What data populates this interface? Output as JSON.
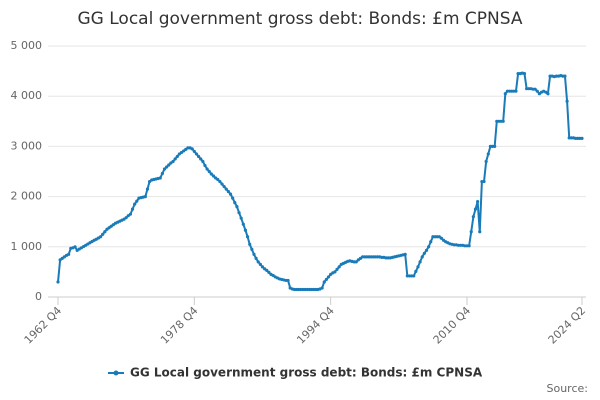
{
  "chart_data": {
    "type": "line",
    "title": "GG Local government gross debt: Bonds: £m CPNSA",
    "source": "Source:",
    "categories": [
      "1962 Q4",
      null,
      null,
      null,
      null,
      null,
      null,
      null,
      null,
      null,
      null,
      null,
      null,
      null,
      null,
      null,
      null,
      null,
      null,
      null,
      null,
      null,
      null,
      null,
      null,
      null,
      null,
      null,
      null,
      null,
      null,
      null,
      null,
      null,
      null,
      null,
      null,
      null,
      null,
      null,
      null,
      null,
      null,
      null,
      null,
      null,
      null,
      null,
      null,
      null,
      null,
      null,
      null,
      null,
      null,
      null,
      null,
      null,
      null,
      null,
      null,
      null,
      null,
      null,
      "1978 Q4",
      null,
      null,
      null,
      null,
      null,
      null,
      null,
      null,
      null,
      null,
      null,
      null,
      null,
      null,
      null,
      null,
      null,
      null,
      null,
      null,
      null,
      null,
      null,
      null,
      null,
      null,
      null,
      null,
      null,
      null,
      null,
      null,
      null,
      null,
      null,
      null,
      null,
      null,
      null,
      null,
      null,
      null,
      null,
      null,
      null,
      null,
      null,
      null,
      null,
      null,
      null,
      null,
      null,
      null,
      null,
      null,
      null,
      null,
      null,
      null,
      null,
      null,
      null,
      "1994 Q4",
      null,
      null,
      null,
      null,
      null,
      null,
      null,
      null,
      null,
      null,
      null,
      null,
      null,
      null,
      null,
      null,
      null,
      null,
      null,
      null,
      null,
      null,
      null,
      null,
      null,
      null,
      null,
      null,
      null,
      null,
      null,
      null,
      null,
      null,
      null,
      null,
      null,
      null,
      null,
      null,
      null,
      null,
      null,
      null,
      null,
      null,
      null,
      null,
      null,
      null,
      null,
      null,
      null,
      null,
      null,
      null,
      null,
      null,
      null,
      null,
      null,
      null,
      null,
      "2010 Q4",
      null,
      null,
      null,
      null,
      null,
      null,
      null,
      null,
      null,
      null,
      null,
      null,
      null,
      null,
      null,
      null,
      null,
      null,
      null,
      null,
      null,
      null,
      null,
      null,
      null,
      null,
      null,
      null,
      null,
      null,
      null,
      null,
      null,
      null,
      null,
      null,
      null,
      null,
      null,
      null,
      null,
      null,
      null,
      null,
      null,
      null,
      null,
      null,
      null,
      null,
      null,
      null,
      null,
      "2024 Q2"
    ],
    "series": [
      {
        "name": "GG Local government gross debt: Bonds: £m CPNSA",
        "color": "#1a7bb9",
        "values": [
          300,
          740,
          770,
          800,
          830,
          850,
          970,
          980,
          1000,
          930,
          955,
          980,
          1005,
          1030,
          1055,
          1080,
          1105,
          1130,
          1150,
          1175,
          1200,
          1250,
          1300,
          1350,
          1380,
          1410,
          1440,
          1470,
          1490,
          1510,
          1530,
          1550,
          1580,
          1620,
          1650,
          1750,
          1850,
          1910,
          1970,
          1980,
          1990,
          2000,
          2150,
          2300,
          2330,
          2340,
          2350,
          2360,
          2370,
          2460,
          2550,
          2590,
          2630,
          2670,
          2700,
          2750,
          2800,
          2850,
          2880,
          2910,
          2940,
          2970,
          2970,
          2950,
          2900,
          2850,
          2800,
          2750,
          2700,
          2620,
          2550,
          2500,
          2450,
          2410,
          2370,
          2340,
          2300,
          2250,
          2200,
          2150,
          2100,
          2050,
          1970,
          1880,
          1800,
          1680,
          1570,
          1450,
          1330,
          1200,
          1050,
          950,
          850,
          770,
          700,
          650,
          600,
          560,
          530,
          490,
          450,
          430,
          400,
          380,
          360,
          350,
          340,
          330,
          330,
          180,
          160,
          150,
          150,
          150,
          150,
          150,
          150,
          150,
          150,
          150,
          150,
          150,
          150,
          160,
          180,
          300,
          350,
          400,
          450,
          480,
          500,
          550,
          600,
          650,
          670,
          690,
          710,
          720,
          710,
          700,
          700,
          740,
          770,
          800,
          800,
          800,
          800,
          800,
          800,
          800,
          800,
          800,
          790,
          790,
          780,
          780,
          780,
          790,
          800,
          810,
          820,
          830,
          840,
          850,
          420,
          420,
          420,
          420,
          510,
          600,
          700,
          800,
          870,
          930,
          1000,
          1100,
          1200,
          1200,
          1200,
          1200,
          1170,
          1130,
          1100,
          1080,
          1060,
          1050,
          1040,
          1040,
          1030,
          1030,
          1030,
          1020,
          1020,
          1020,
          1300,
          1600,
          1750,
          1900,
          1300,
          2300,
          2300,
          2700,
          2850,
          3000,
          3000,
          3000,
          3500,
          3500,
          3500,
          3500,
          4050,
          4100,
          4100,
          4100,
          4100,
          4100,
          4450,
          4450,
          4460,
          4450,
          4150,
          4150,
          4150,
          4140,
          4140,
          4100,
          4050,
          4080,
          4100,
          4080,
          4050,
          4400,
          4400,
          4390,
          4400,
          4400,
          4410,
          4400,
          4400,
          3900,
          3170,
          3170,
          3170,
          3160,
          3160,
          3160,
          3160
        ]
      }
    ],
    "ylim": [
      0,
      5000
    ],
    "yticks": [
      0,
      {
        "value": 1000,
        "label": "1 000"
      },
      {
        "value": 2000,
        "label": "2 000"
      },
      {
        "value": 3000,
        "label": "3 000"
      },
      {
        "value": 4000,
        "label": "4 000"
      },
      {
        "value": 5000,
        "label": "5 000"
      }
    ],
    "grid": true,
    "legend": "bottom"
  }
}
